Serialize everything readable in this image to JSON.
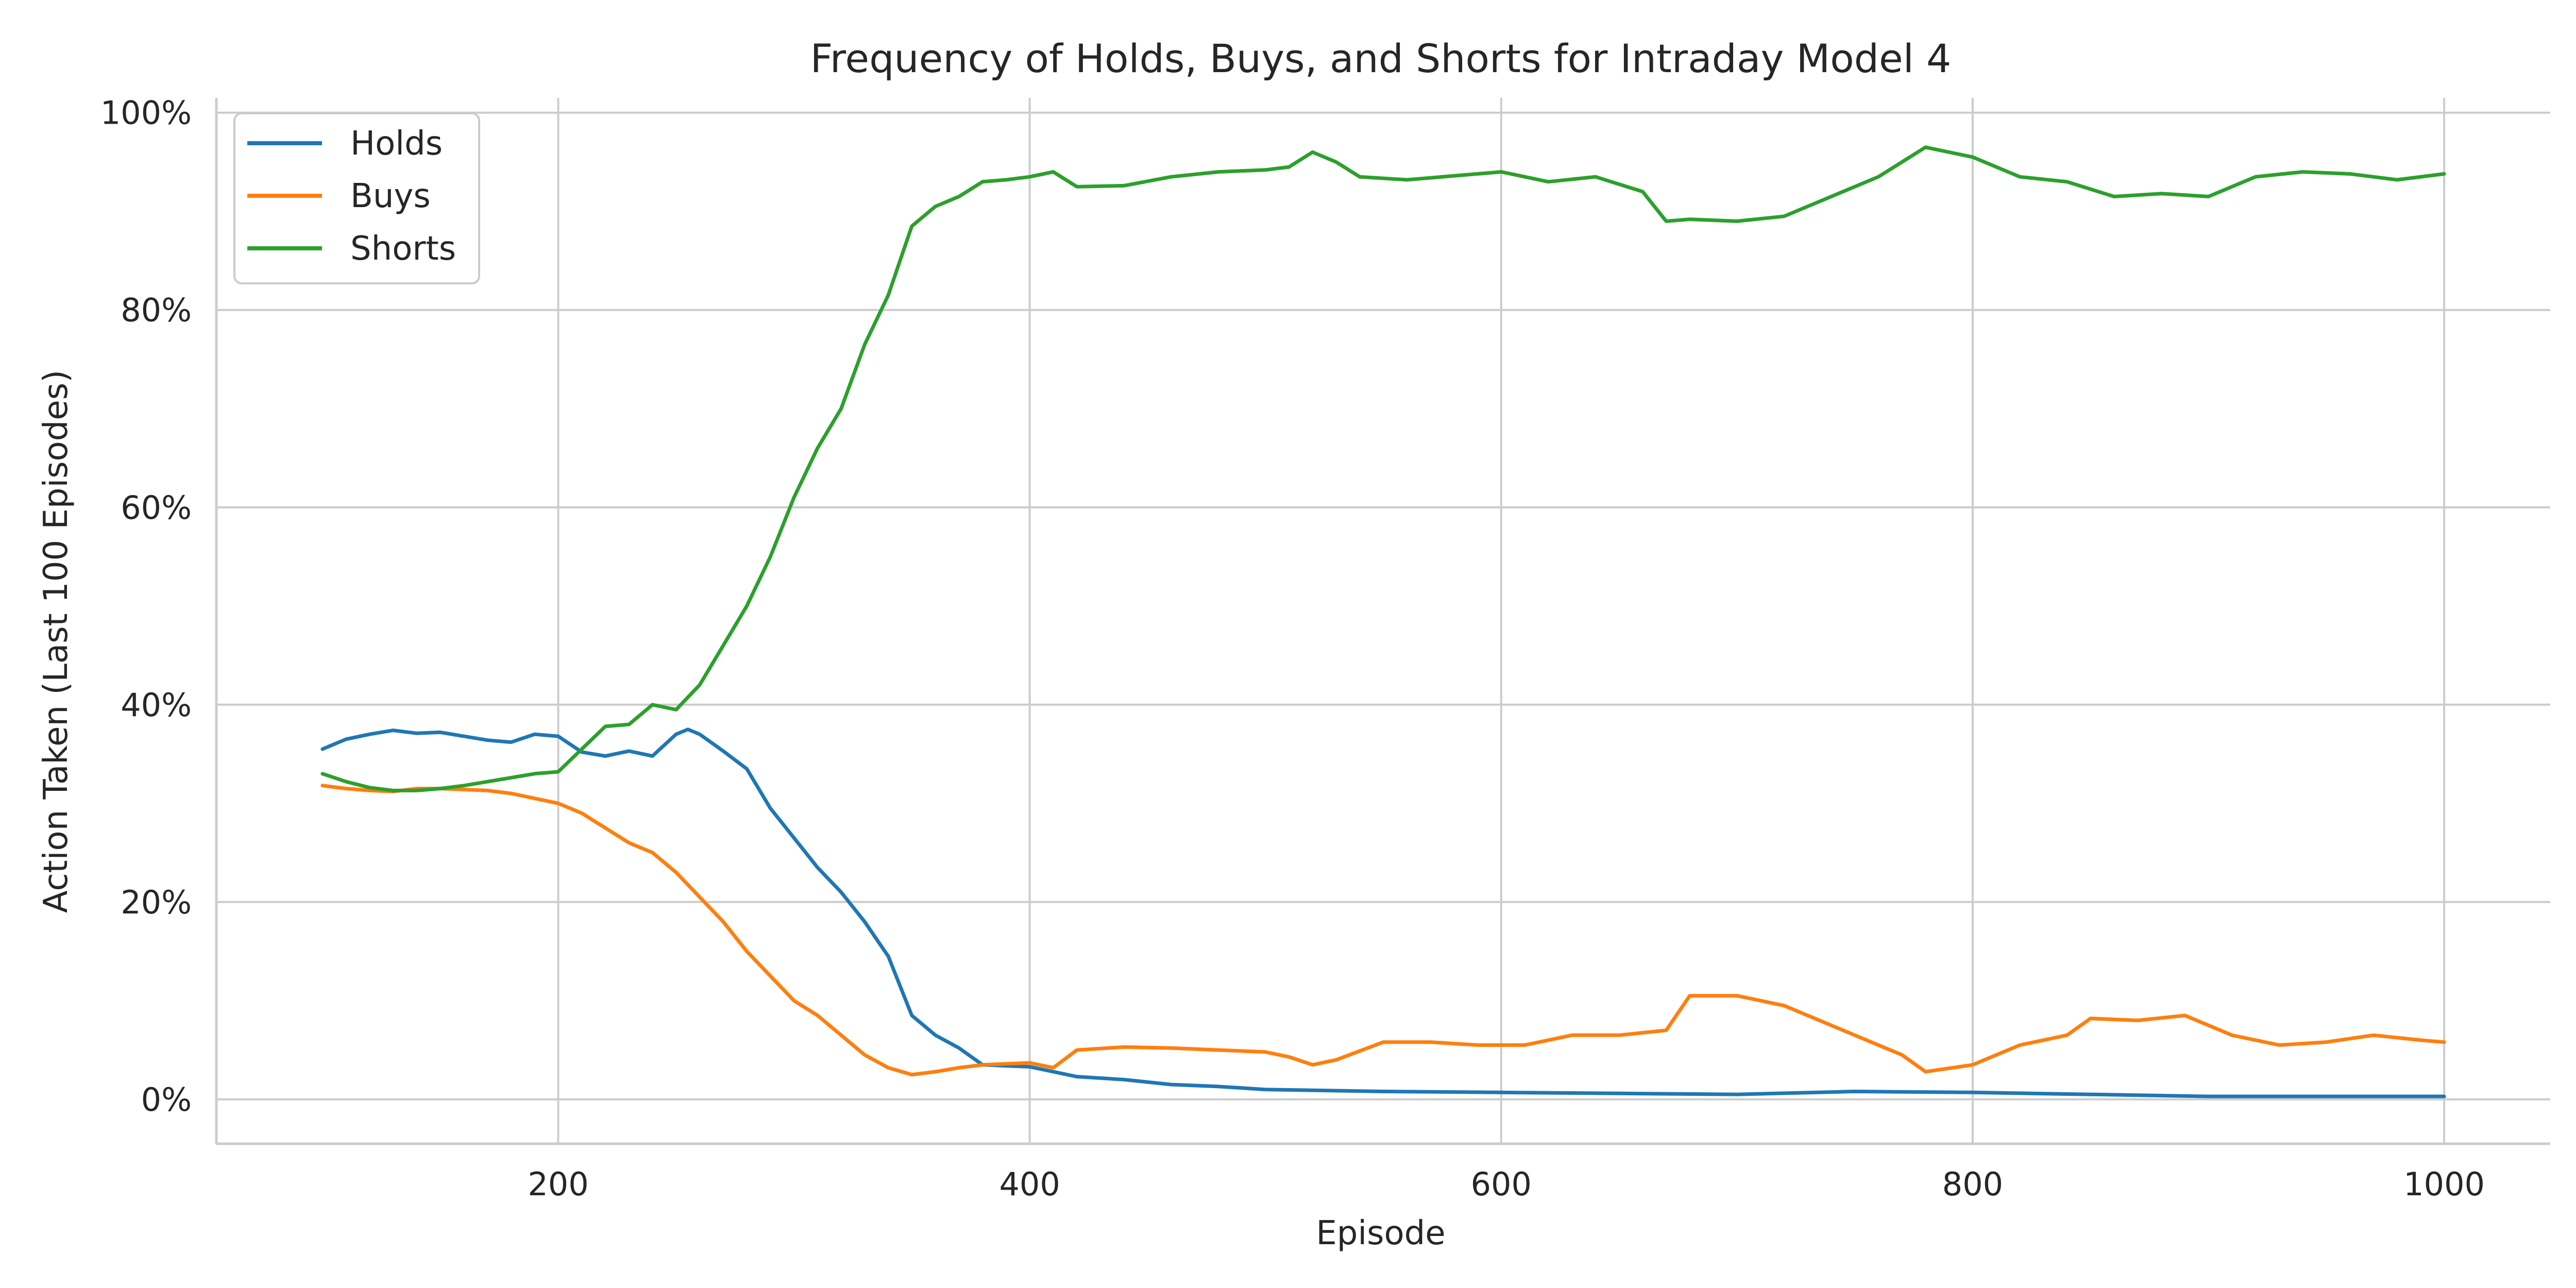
{
  "chart_data": {
    "type": "line",
    "title": "Frequency of Holds, Buys, and Shorts for Intraday Model 4",
    "xlabel": "Episode",
    "ylabel": "Action Taken (Last 100 Episodes)",
    "xlim": [
      55,
      1045
    ],
    "ylim": [
      -4.5,
      101.5
    ],
    "xticks": [
      200,
      400,
      600,
      800,
      1000
    ],
    "xtick_labels": [
      "200",
      "400",
      "600",
      "800",
      "1000"
    ],
    "yticks": [
      0,
      20,
      40,
      60,
      80,
      100
    ],
    "ytick_labels": [
      "0%",
      "20%",
      "40%",
      "60%",
      "80%",
      "100%"
    ],
    "grid": true,
    "legend_position": "top-left",
    "series": [
      {
        "name": "Holds",
        "color": "#1f77b4",
        "x": [
          100,
          110,
          120,
          130,
          140,
          150,
          160,
          170,
          180,
          190,
          200,
          210,
          220,
          230,
          240,
          250,
          255,
          260,
          270,
          280,
          290,
          300,
          310,
          320,
          330,
          340,
          350,
          360,
          370,
          380,
          390,
          400,
          420,
          440,
          460,
          480,
          500,
          550,
          600,
          650,
          700,
          750,
          800,
          850,
          900,
          950,
          1000
        ],
        "y": [
          35.5,
          36.5,
          37.0,
          37.4,
          37.1,
          37.2,
          36.8,
          36.4,
          36.2,
          37.0,
          36.8,
          35.2,
          34.8,
          35.3,
          34.8,
          37.0,
          37.5,
          37.0,
          35.3,
          33.5,
          29.5,
          26.5,
          23.5,
          21.0,
          18.0,
          14.5,
          8.5,
          6.5,
          5.2,
          3.5,
          3.4,
          3.3,
          2.3,
          2.0,
          1.5,
          1.3,
          1.0,
          0.8,
          0.7,
          0.6,
          0.5,
          0.8,
          0.7,
          0.5,
          0.3,
          0.3,
          0.3
        ]
      },
      {
        "name": "Buys",
        "color": "#ff7f0e",
        "x": [
          100,
          110,
          120,
          130,
          140,
          150,
          160,
          170,
          180,
          190,
          200,
          210,
          220,
          230,
          240,
          250,
          260,
          270,
          280,
          290,
          300,
          310,
          320,
          330,
          340,
          350,
          360,
          370,
          380,
          400,
          410,
          420,
          440,
          460,
          480,
          500,
          510,
          520,
          530,
          550,
          570,
          590,
          610,
          630,
          650,
          670,
          680,
          700,
          720,
          740,
          760,
          770,
          780,
          800,
          820,
          840,
          850,
          870,
          890,
          910,
          930,
          950,
          970,
          990,
          1000
        ],
        "y": [
          31.8,
          31.5,
          31.3,
          31.2,
          31.5,
          31.5,
          31.4,
          31.3,
          31.0,
          30.5,
          30.0,
          29.0,
          27.5,
          26.0,
          25.0,
          23.0,
          20.5,
          18.0,
          15.0,
          12.5,
          10.0,
          8.5,
          6.5,
          4.5,
          3.2,
          2.5,
          2.8,
          3.2,
          3.5,
          3.7,
          3.2,
          5.0,
          5.3,
          5.2,
          5.0,
          4.8,
          4.3,
          3.5,
          4.0,
          5.8,
          5.8,
          5.5,
          5.5,
          6.5,
          6.5,
          7.0,
          10.5,
          10.5,
          9.5,
          7.5,
          5.5,
          4.5,
          2.8,
          3.5,
          5.5,
          6.5,
          8.2,
          8.0,
          8.5,
          6.5,
          5.5,
          5.8,
          6.5,
          6.0,
          5.8
        ]
      },
      {
        "name": "Shorts",
        "color": "#2ca02c",
        "x": [
          100,
          110,
          120,
          130,
          140,
          150,
          160,
          170,
          180,
          190,
          200,
          210,
          220,
          230,
          240,
          250,
          260,
          270,
          280,
          290,
          300,
          310,
          320,
          330,
          340,
          350,
          360,
          370,
          380,
          390,
          400,
          410,
          420,
          440,
          460,
          480,
          500,
          510,
          520,
          530,
          540,
          560,
          580,
          600,
          620,
          640,
          660,
          670,
          680,
          700,
          720,
          740,
          760,
          770,
          780,
          800,
          820,
          840,
          860,
          880,
          900,
          920,
          940,
          960,
          980,
          1000
        ],
        "y": [
          33.0,
          32.2,
          31.6,
          31.3,
          31.3,
          31.5,
          31.8,
          32.2,
          32.6,
          33.0,
          33.2,
          35.5,
          37.8,
          38.0,
          40.0,
          39.5,
          42.0,
          46.0,
          50.0,
          55.0,
          61.0,
          66.0,
          70.0,
          76.5,
          81.5,
          88.5,
          90.5,
          91.5,
          93.0,
          93.2,
          93.5,
          94.0,
          92.5,
          92.6,
          93.5,
          94.0,
          94.2,
          94.5,
          96.0,
          95.0,
          93.5,
          93.2,
          93.6,
          94.0,
          93.0,
          93.5,
          92.0,
          89.0,
          89.2,
          89.0,
          89.5,
          91.5,
          93.5,
          95.0,
          96.5,
          95.5,
          93.5,
          93.0,
          91.5,
          91.8,
          91.5,
          93.5,
          94.0,
          93.8,
          93.2,
          93.8
        ]
      }
    ]
  }
}
